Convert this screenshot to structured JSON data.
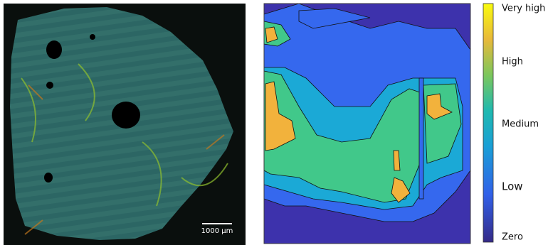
{
  "scale_bar": {
    "label": "1000 µm"
  },
  "colorbar": {
    "labels": [
      "Very high",
      "High",
      "Medium",
      "Low",
      "Zero"
    ]
  }
}
